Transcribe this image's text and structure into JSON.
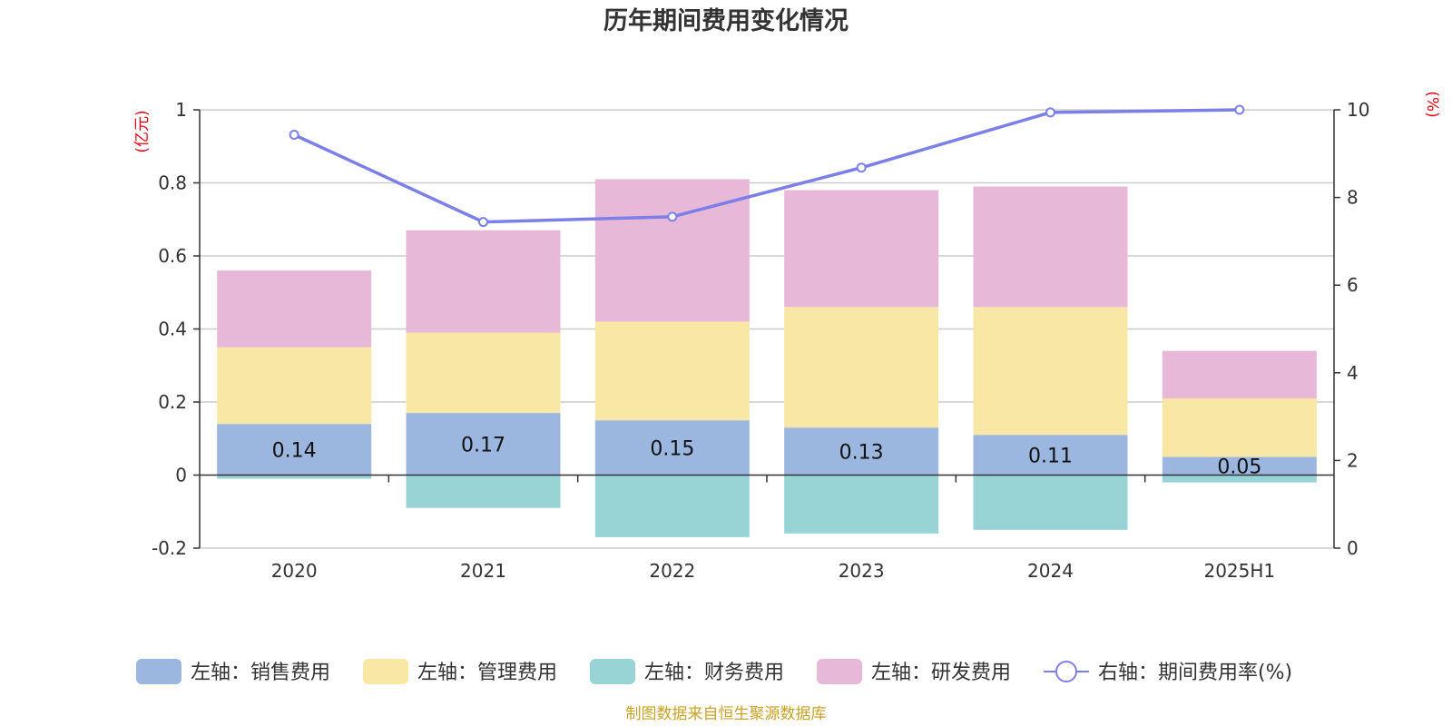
{
  "chart_data": {
    "type": "bar",
    "title": "历年期间费用变化情况",
    "categories": [
      "2020",
      "2021",
      "2022",
      "2023",
      "2024",
      "2025H1"
    ],
    "left_axis": {
      "unit": "(亿元)",
      "ylim": [
        -0.2,
        1
      ],
      "ticks": [
        "-0.2",
        "0",
        "0.2",
        "0.4",
        "0.6",
        "0.8",
        "1"
      ]
    },
    "right_axis": {
      "unit": "(%)",
      "ylim": [
        0,
        10
      ],
      "ticks": [
        "0",
        "2",
        "4",
        "6",
        "8",
        "10"
      ]
    },
    "grid": true,
    "stacked": true,
    "series": [
      {
        "name": "左轴：销售费用",
        "axis": "left",
        "kind": "bar",
        "color": "#9bb7e0",
        "values": [
          0.14,
          0.17,
          0.15,
          0.13,
          0.11,
          0.05
        ],
        "labels": [
          "0.14",
          "0.17",
          "0.15",
          "0.13",
          "0.11",
          "0.05"
        ]
      },
      {
        "name": "左轴：管理费用",
        "axis": "left",
        "kind": "bar",
        "color": "#f9e7a6",
        "values": [
          0.21,
          0.22,
          0.27,
          0.33,
          0.35,
          0.16
        ]
      },
      {
        "name": "左轴：财务费用",
        "axis": "left",
        "kind": "bar",
        "color": "#98d4d6",
        "values": [
          -0.01,
          -0.09,
          -0.17,
          -0.16,
          -0.15,
          -0.02
        ]
      },
      {
        "name": "左轴：研发费用",
        "axis": "left",
        "kind": "bar",
        "color": "#e8b8d9",
        "values": [
          0.21,
          0.28,
          0.39,
          0.32,
          0.33,
          0.13
        ]
      },
      {
        "name": "右轴：期间费用率(%)",
        "axis": "right",
        "kind": "line",
        "color": "#7b7fe8",
        "values": [
          9.43,
          7.44,
          7.56,
          8.68,
          9.94,
          10.0
        ]
      }
    ],
    "legend_position": "bottom"
  },
  "source_note": "制图数据来自恒生聚源数据库"
}
